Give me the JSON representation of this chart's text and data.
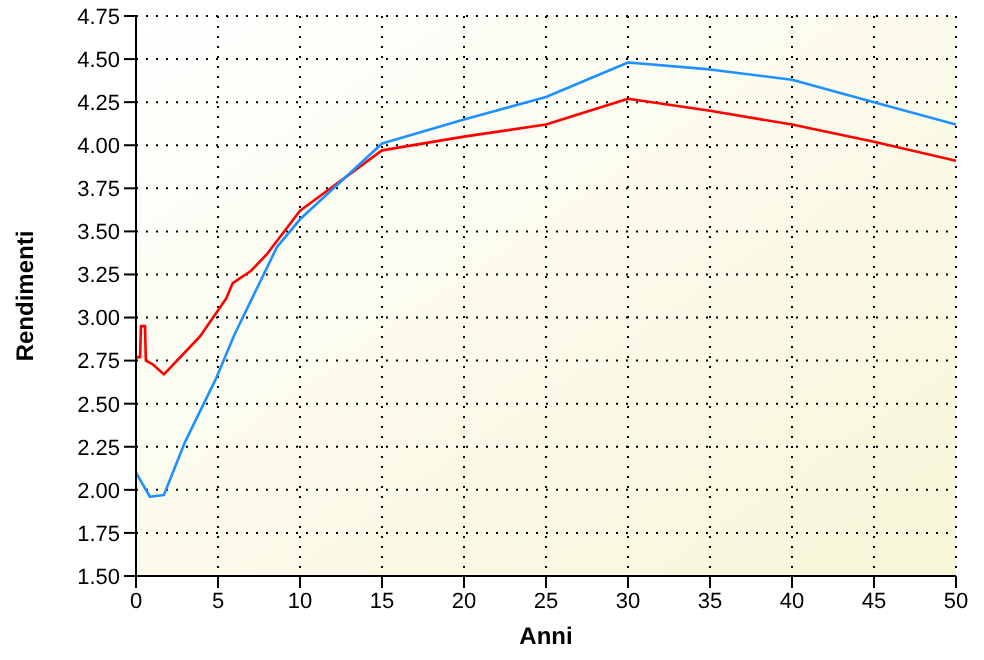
{
  "chart_data": {
    "type": "line",
    "xlabel": "Anni",
    "ylabel": "Rendimenti",
    "xlim": [
      0,
      50
    ],
    "xticks": [
      0,
      5,
      10,
      15,
      20,
      25,
      30,
      35,
      40,
      45,
      50
    ],
    "ylim": [
      1.5,
      4.75
    ],
    "yticks": [
      {
        "value": 1.5,
        "label": "1.50"
      },
      {
        "value": 1.75,
        "label": "1.75"
      },
      {
        "value": 2,
        "label": "2.00"
      },
      {
        "value": 2.25,
        "label": "2.25"
      },
      {
        "value": 2.5,
        "label": "2.50"
      },
      {
        "value": 2.75,
        "label": "2.75"
      },
      {
        "value": 3,
        "label": "3.00"
      },
      {
        "value": 3.25,
        "label": "3.25"
      },
      {
        "value": 3.5,
        "label": "3.50"
      },
      {
        "value": 3.75,
        "label": "3.75"
      },
      {
        "value": 4,
        "label": "4.00"
      },
      {
        "value": 4.25,
        "label": "4.25"
      },
      {
        "value": 4.5,
        "label": "4.50"
      },
      {
        "value": 4.75,
        "label": "4.75"
      }
    ],
    "grid": true,
    "line_style": "solid",
    "marker": "none",
    "series": [
      {
        "color": "#ff0000",
        "x": [
          0,
          0.25,
          0.3,
          0.55,
          0.6,
          1,
          1.7,
          3.9,
          5.5,
          5.9,
          7,
          8,
          10,
          15,
          20,
          25,
          30,
          35,
          40,
          45,
          50
        ],
        "values": [
          2.77,
          2.77,
          2.95,
          2.95,
          2.75,
          2.73,
          2.67,
          2.89,
          3.11,
          3.2,
          3.27,
          3.37,
          3.62,
          3.97,
          4.05,
          4.12,
          4.27,
          4.2,
          4.12,
          4.02,
          3.91
        ]
      },
      {
        "color": "#1e90ff",
        "x": [
          0,
          0.85,
          1.7,
          3,
          4.9,
          6,
          8.6,
          10,
          15,
          20,
          25,
          30,
          35,
          40,
          45,
          50
        ],
        "values": [
          2.1,
          1.96,
          1.97,
          2.28,
          2.65,
          2.9,
          3.41,
          3.57,
          4.01,
          4.15,
          4.28,
          4.48,
          4.44,
          4.38,
          4.25,
          4.12
        ]
      }
    ]
  }
}
